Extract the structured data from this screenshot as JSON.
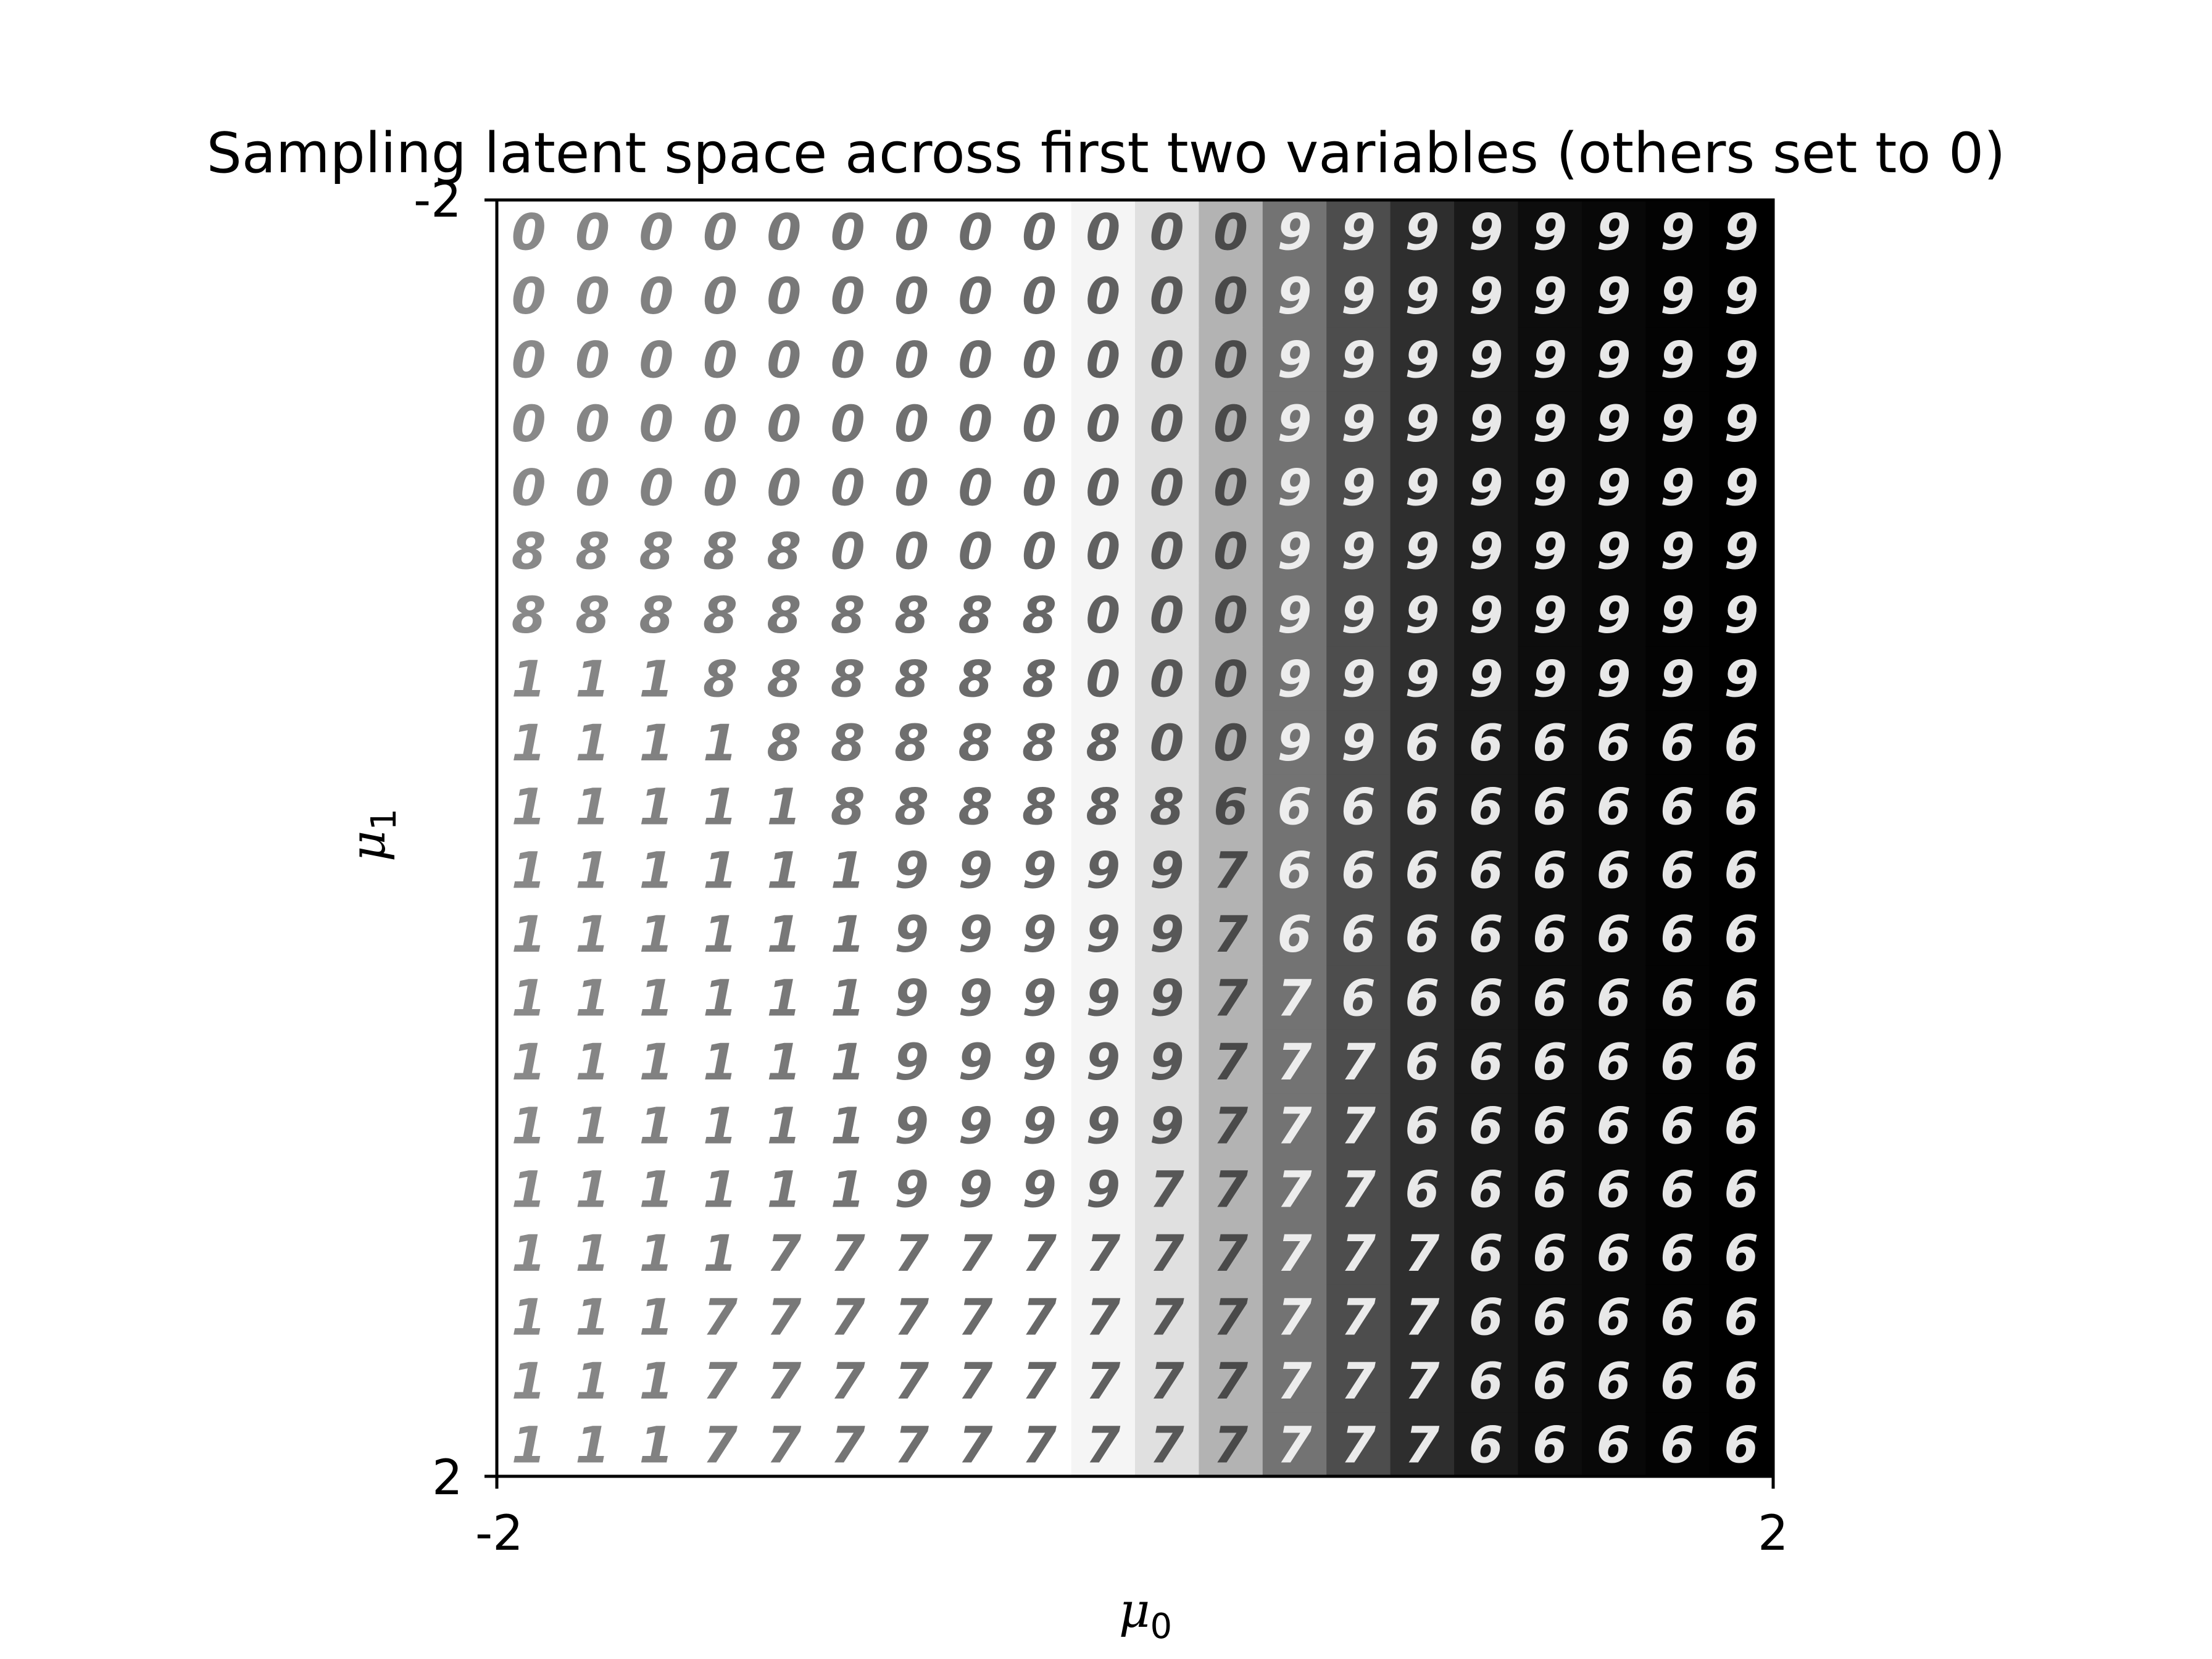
{
  "chart_data": {
    "type": "heatmap",
    "title": "Sampling latent space across first two variables (others set to 0)",
    "xlabel": {
      "symbol": "μ",
      "subscript": "0"
    },
    "ylabel": {
      "symbol": "μ",
      "subscript": "1"
    },
    "xlim": [
      -2,
      2
    ],
    "ylim": [
      -2,
      2
    ],
    "x_ticks": [
      "-2",
      "2"
    ],
    "y_ticks": [
      "-2",
      "2"
    ],
    "grid": false,
    "legend": "none",
    "content": "20x20 grid of decoded digit images",
    "grid_size": 20,
    "digit_rows": [
      "00000000000099999999",
      "00000000000099999999",
      "00000000000099999999",
      "00000000000099999999",
      "00000000000099999999",
      "88888000000099999999",
      "88888888800099999999",
      "11188888800099999999",
      "11118888880099666666",
      "11111888888666666666",
      "11111199999766666666",
      "11111199999766666666",
      "11111199999776666666",
      "11111199999777666666",
      "11111199999777666666",
      "11111199997777666666",
      "11117777777777766666",
      "11177777777777766666",
      "11177777777777766666",
      "11177777777777766666"
    ],
    "background_profile": [
      0,
      0,
      0,
      0,
      0,
      0,
      0,
      0,
      0,
      0.04,
      0.12,
      0.3,
      0.55,
      0.7,
      0.82,
      0.9,
      0.95,
      0.97,
      0.99,
      1.0
    ],
    "colors": {
      "ink_light_bg": "#2a2a2a",
      "ink_dark_bg": "#f4f4f4",
      "axes": "#000000"
    }
  }
}
